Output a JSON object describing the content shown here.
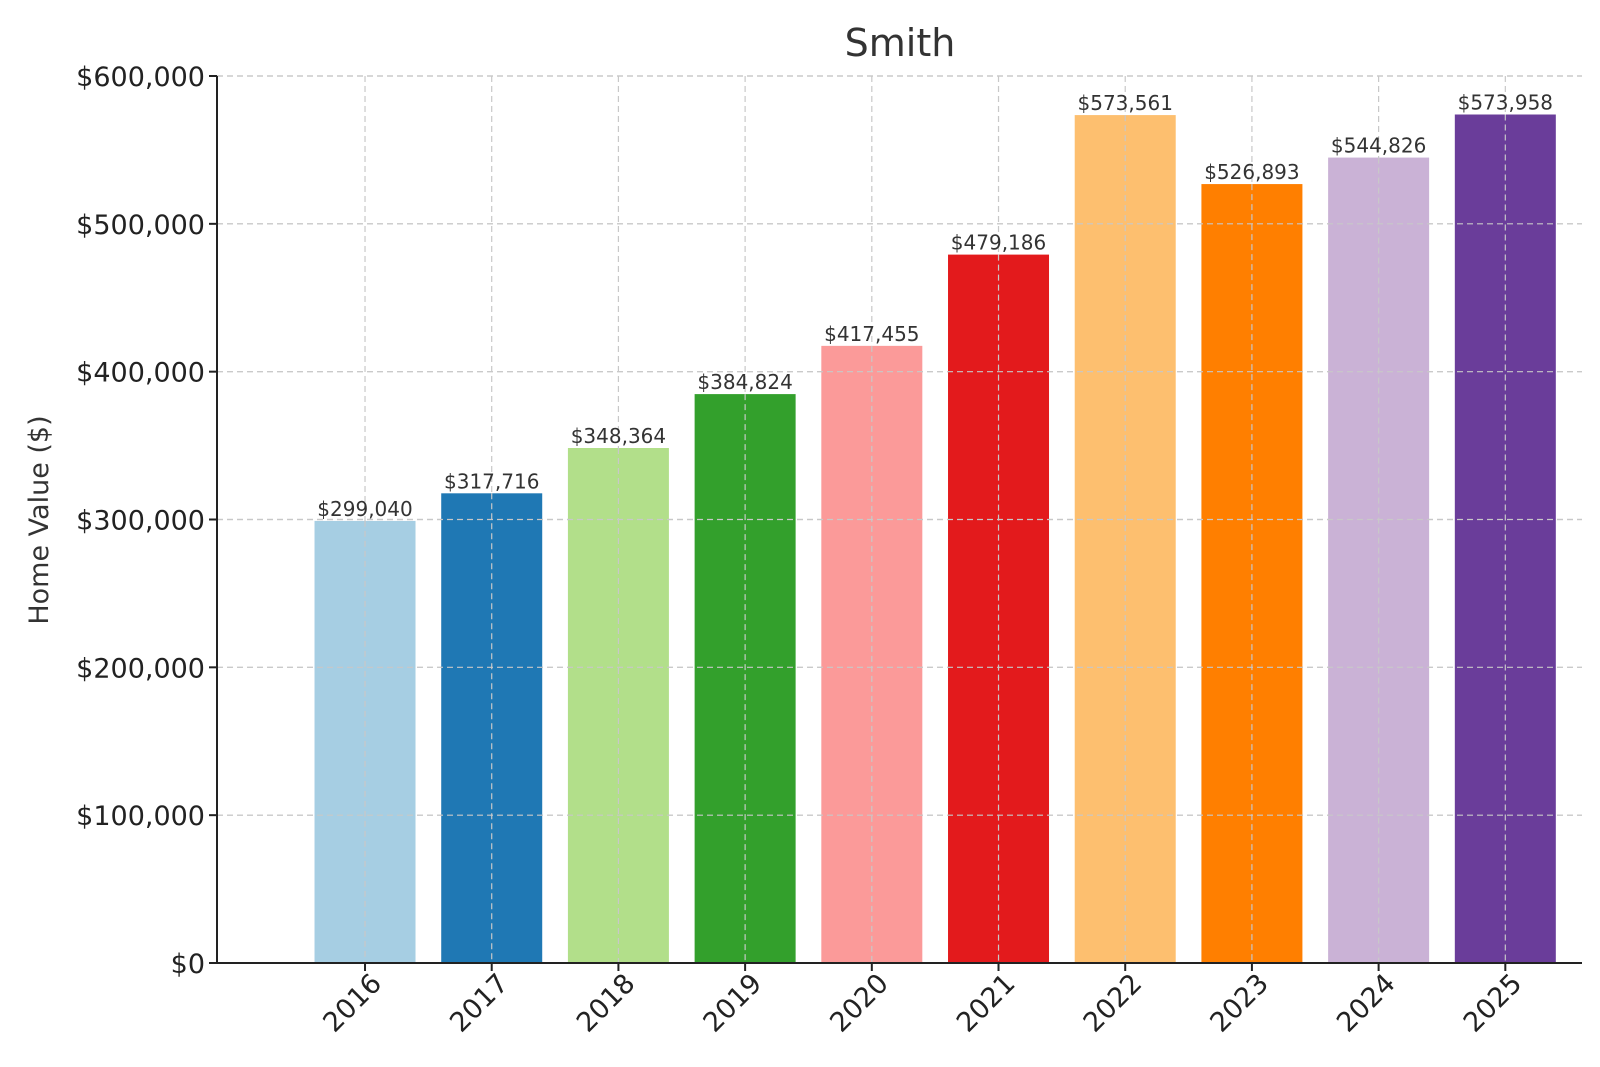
{
  "chart_data": {
    "type": "bar",
    "title": "Smith",
    "xlabel": "",
    "ylabel": "Home Value ($)",
    "categories": [
      "2016",
      "2017",
      "2018",
      "2019",
      "2020",
      "2021",
      "2022",
      "2023",
      "2024",
      "2025"
    ],
    "values": [
      299040,
      317716,
      348364,
      384824,
      417455,
      479186,
      573561,
      526893,
      544826,
      573958
    ],
    "value_labels": [
      "$299,040",
      "$317,716",
      "$348,364",
      "$384,824",
      "$417,455",
      "$479,186",
      "$573,561",
      "$526,893",
      "$544,826",
      "$573,958"
    ],
    "colors": [
      "#a6cee3",
      "#1f78b4",
      "#b2df8a",
      "#33a02c",
      "#fb9a99",
      "#e31a1c",
      "#fdbf6f",
      "#ff7f00",
      "#cab2d6",
      "#6a3d9a"
    ],
    "ylim": [
      0,
      600000
    ],
    "yticks": [
      0,
      100000,
      200000,
      300000,
      400000,
      500000,
      600000
    ],
    "ytick_labels": [
      "$0",
      "$100,000",
      "$200,000",
      "$300,000",
      "$400,000",
      "$500,000",
      "$600,000"
    ],
    "grid": true,
    "xtick_rotation_deg": 45
  }
}
